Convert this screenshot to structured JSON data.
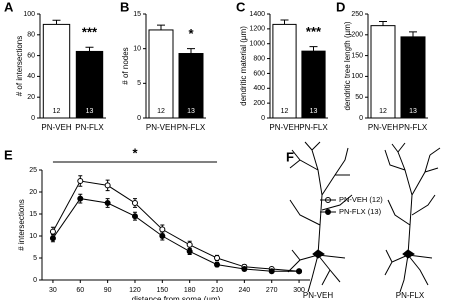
{
  "chart_data": [
    {
      "type": "bar",
      "panel": "A",
      "ylabel": "# of intersections",
      "categories": [
        "PN-VEH",
        "PN-FLX"
      ],
      "values": [
        90,
        64
      ],
      "errors": [
        4,
        4
      ],
      "n_labels": [
        "12",
        "13"
      ],
      "colors": [
        "#ffffff",
        "#000000"
      ],
      "significance": "***",
      "ylim": [
        0,
        100
      ],
      "yticks": [
        0,
        20,
        40,
        60,
        80,
        100
      ]
    },
    {
      "type": "bar",
      "panel": "B",
      "ylabel": "# of nodes",
      "categories": [
        "PN-VEH",
        "PN-FLX"
      ],
      "values": [
        12.7,
        9.3
      ],
      "errors": [
        0.7,
        0.7
      ],
      "n_labels": [
        "12",
        "13"
      ],
      "colors": [
        "#ffffff",
        "#000000"
      ],
      "significance": "*",
      "ylim": [
        0,
        15
      ],
      "yticks": [
        0,
        5,
        10,
        15
      ]
    },
    {
      "type": "bar",
      "panel": "C",
      "ylabel": "dendritic material (µm)",
      "categories": [
        "PN-VEH",
        "PN-FLX"
      ],
      "values": [
        1260,
        900
      ],
      "errors": [
        60,
        60
      ],
      "n_labels": [
        "12",
        "13"
      ],
      "colors": [
        "#ffffff",
        "#000000"
      ],
      "significance": "***",
      "ylim": [
        0,
        1400
      ],
      "yticks": [
        0,
        200,
        400,
        600,
        800,
        1000,
        1200,
        1400
      ]
    },
    {
      "type": "bar",
      "panel": "D",
      "ylabel": "dendritic tree length (µm)",
      "categories": [
        "PN-VEH",
        "PN-FLX"
      ],
      "values": [
        222,
        195
      ],
      "errors": [
        10,
        12
      ],
      "n_labels": [
        "12",
        "13"
      ],
      "colors": [
        "#ffffff",
        "#000000"
      ],
      "ylim": [
        0,
        250
      ],
      "yticks": [
        0,
        50,
        100,
        150,
        200,
        250
      ]
    },
    {
      "type": "line",
      "panel": "E",
      "xlabel": "distance from soma (µm)",
      "ylabel": "# intersections",
      "x": [
        30,
        60,
        90,
        120,
        150,
        180,
        210,
        240,
        270,
        300
      ],
      "series": [
        {
          "name": "PN-VEH (12)",
          "color": "#ffffff",
          "values": [
            11,
            22.5,
            21.5,
            17.5,
            11.5,
            8,
            5,
            3,
            2.5,
            2
          ],
          "errors": [
            1,
            1.2,
            1.2,
            1,
            1,
            0.8,
            0.6,
            0.5,
            0.4,
            0.4
          ]
        },
        {
          "name": "PN-FLX (13)",
          "color": "#000000",
          "values": [
            9.5,
            18.5,
            17.5,
            14.5,
            10,
            6.5,
            3.5,
            2.5,
            2,
            2
          ],
          "errors": [
            0.8,
            1,
            1,
            0.9,
            0.9,
            0.7,
            0.5,
            0.4,
            0.4,
            0.3
          ]
        }
      ],
      "significance": "*",
      "sig_range": [
        30,
        210
      ],
      "xlim": [
        18,
        312
      ],
      "ylim": [
        0,
        25
      ],
      "yticks": [
        0,
        5,
        10,
        15,
        20,
        25
      ],
      "xticks": [
        30,
        60,
        90,
        120,
        150,
        180,
        210,
        240,
        270,
        300
      ]
    }
  ],
  "figure_f": {
    "panel": "F",
    "labels": [
      "PN-VEH",
      "PN-FLX"
    ]
  }
}
